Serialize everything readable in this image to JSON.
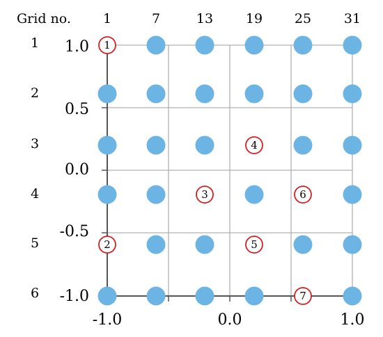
{
  "header_label": "Grid no.",
  "column_labels": [
    "1",
    "7",
    "13",
    "19",
    "25",
    "31"
  ],
  "row_labels": [
    "1",
    "2",
    "3",
    "4",
    "5",
    "6"
  ],
  "x_ticks": [
    "-1.0",
    "0.0",
    "1.0"
  ],
  "y_ticks": [
    "1.0",
    "0.5",
    "0.0",
    "-0.5",
    "-1.0"
  ],
  "colors": {
    "dot": "#6cb4e4",
    "marker_stroke": "#d42020",
    "grid_line": "#b0b0b0",
    "axis_line": "#555555"
  },
  "markers": [
    {
      "label": "1",
      "row": 1,
      "col": 1
    },
    {
      "label": "2",
      "row": 5,
      "col": 1
    },
    {
      "label": "3",
      "row": 4,
      "col": 3
    },
    {
      "label": "4",
      "row": 3,
      "col": 4
    },
    {
      "label": "5",
      "row": 5,
      "col": 4
    },
    {
      "label": "6",
      "row": 4,
      "col": 5
    },
    {
      "label": "7",
      "row": 6,
      "col": 5
    }
  ]
}
